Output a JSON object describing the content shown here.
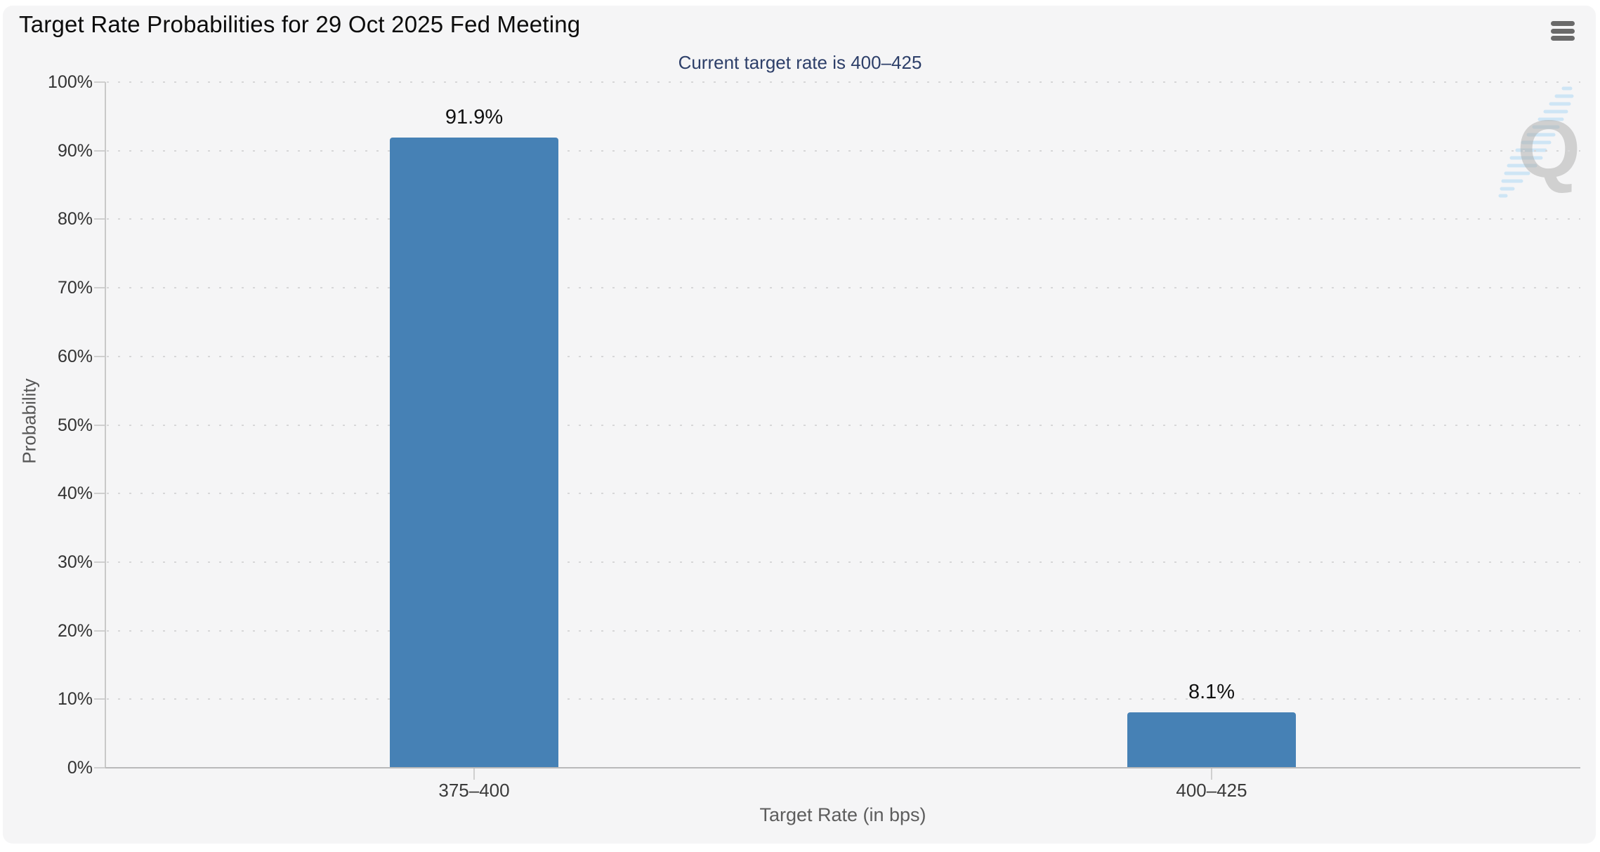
{
  "header": {
    "menu_icon": "hamburger-icon"
  },
  "watermark": {
    "letter": "Q"
  },
  "colors": {
    "panel_background": "#f5f5f6",
    "bar": "#4681b5",
    "subtitle_text": "#2d3f69",
    "axis_line": "#b9b9ba",
    "gridline": "#d7d7d8"
  },
  "chart_data": {
    "type": "bar",
    "title": "Target Rate Probabilities for 29 Oct 2025 Fed Meeting",
    "subtitle": "Current target rate is 400–425",
    "categories": [
      "375–400",
      "400–425"
    ],
    "values": [
      91.9,
      8.1
    ],
    "value_labels": [
      "91.9%",
      "8.1%"
    ],
    "xlabel": "Target Rate (in bps)",
    "ylabel": "Probability",
    "ylim": [
      0,
      100
    ],
    "ytick_step": 10,
    "ytick_suffix": "%",
    "ytick_labels": [
      "0%",
      "10%",
      "20%",
      "30%",
      "40%",
      "50%",
      "60%",
      "70%",
      "80%",
      "90%",
      "100%"
    ],
    "grid": "dotted-horizontal",
    "legend": "none",
    "bar_color": "#4681b5"
  }
}
